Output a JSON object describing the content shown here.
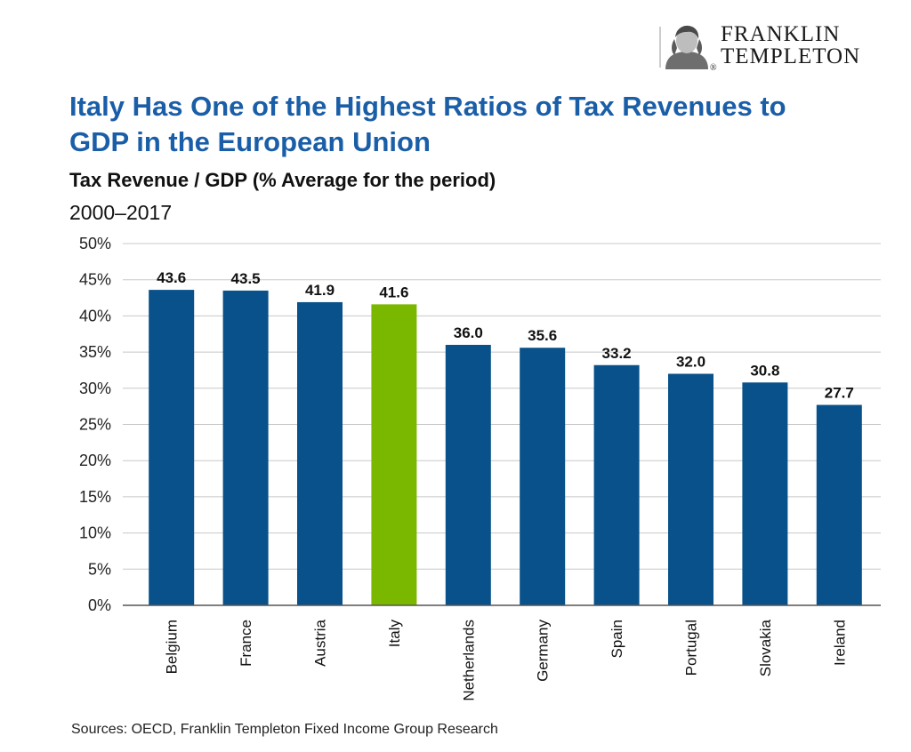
{
  "brand": {
    "line1": "FRANKLIN",
    "line2": "TEMPLETON",
    "mark": "®",
    "portrait_icon": "benjamin-franklin-portrait-icon"
  },
  "title": "Italy Has One of the Highest Ratios of Tax Revenues to GDP in the European Union",
  "subtitle": "Tax Revenue / GDP (% Average for the period)",
  "period": "2000–2017",
  "source": "Sources: OECD, Franklin Templeton Fixed Income Group Research",
  "colors": {
    "bar_default": "#08518a",
    "bar_highlight": "#7ab800",
    "title": "#1a5ea8",
    "grid": "#c8c8c8"
  },
  "chart_data": {
    "type": "bar",
    "categories": [
      "Belgium",
      "France",
      "Austria",
      "Italy",
      "Netherlands",
      "Germany",
      "Spain",
      "Portugal",
      "Slovakia",
      "Ireland"
    ],
    "values": [
      43.6,
      43.5,
      41.9,
      41.6,
      36.0,
      35.6,
      33.2,
      32.0,
      30.8,
      27.7
    ],
    "value_labels": [
      "43.6",
      "43.5",
      "41.9",
      "41.6",
      "36.0",
      "35.6",
      "33.2",
      "32.0",
      "30.8",
      "27.7"
    ],
    "highlight": "Italy",
    "ylim": [
      0,
      50
    ],
    "yticks": [
      "0%",
      "5%",
      "10%",
      "15%",
      "20%",
      "25%",
      "30%",
      "35%",
      "40%",
      "45%",
      "50%"
    ],
    "grid": true,
    "xlabel": "",
    "ylabel": ""
  }
}
